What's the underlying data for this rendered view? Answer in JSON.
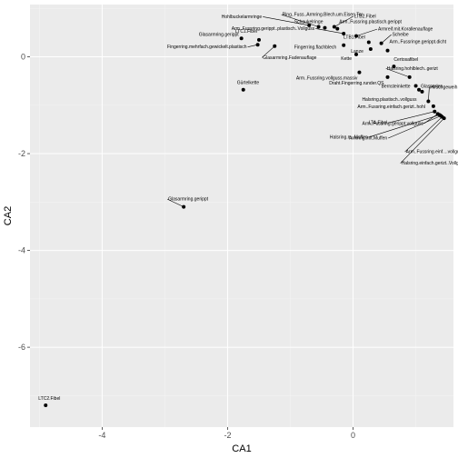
{
  "chart_data": {
    "type": "scatter",
    "xlabel": "CA1",
    "ylabel": "CA2",
    "xlim": [
      -5.15,
      1.6
    ],
    "ylim": [
      -7.65,
      1.08
    ],
    "x_ticks": [
      -4,
      -2,
      0
    ],
    "y_ticks": [
      -6,
      -4,
      -2,
      0
    ],
    "x_tick_labels": [
      "-4",
      "-2",
      "0"
    ],
    "y_tick_labels": [
      "-6",
      "-4",
      "-2",
      "0"
    ],
    "grid": true,
    "colors": {
      "panel": "#ebebeb",
      "grid_major": "#ffffff",
      "grid_minor": "#f4f4f4",
      "point": "#000000"
    },
    "points": [
      {
        "label": "Hohlbuckelarmringe",
        "x": -0.7,
        "y": 0.65
      },
      {
        "label": "Ring..Fuss..Armring.Blech.um.Eisen.Tor",
        "x": -0.55,
        "y": 0.62
      },
      {
        "label": "LTB2.Fibel",
        "x": -0.3,
        "y": 0.62
      },
      {
        "label": "Schaukelringe",
        "x": -0.45,
        "y": 0.6
      },
      {
        "label": "Arm..Fussring.plastisch.gerippt",
        "x": -0.25,
        "y": 0.58
      },
      {
        "label": "Armreif.mit.Korallenauflage",
        "x": 0.05,
        "y": 0.43
      },
      {
        "label": "LTC1.Fibel",
        "x": -1.5,
        "y": 0.35
      },
      {
        "label": "Glasarmring.gerippt",
        "x": -1.78,
        "y": 0.38
      },
      {
        "label": "Arm..Fussring.gerippt..plastisch..Vollguss",
        "x": -0.15,
        "y": 0.48
      },
      {
        "label": "LTB1.Fibel",
        "x": 0.25,
        "y": 0.3
      },
      {
        "label": "Scheibe",
        "x": 0.45,
        "y": 0.28
      },
      {
        "label": "Fingerring.mehrfach.gewickelt.plastisch",
        "x": -1.52,
        "y": 0.25
      },
      {
        "label": "Fingerring.flachblech",
        "x": -0.15,
        "y": 0.24
      },
      {
        "label": "Glasarmring.Fadenauflage",
        "x": -1.25,
        "y": 0.22
      },
      {
        "label": "Arm..Fussringe.gerippt.dicht",
        "x": 0.55,
        "y": 0.13
      },
      {
        "label": "Lanze",
        "x": 0.28,
        "y": 0.16
      },
      {
        "label": "Kette",
        "x": 0.05,
        "y": 0.05
      },
      {
        "label": "Certosafibel",
        "x": 0.65,
        "y": -0.2
      },
      {
        "label": "Arm..Fussring.vollguss.massiv",
        "x": 0.1,
        "y": -0.32
      },
      {
        "label": "Halsring.hohlblech..gerizt",
        "x": 0.9,
        "y": -0.42
      },
      {
        "label": "Draht.Fingerring.runder.QS",
        "x": 0.55,
        "y": -0.42
      },
      {
        "label": "Bernsteinkette",
        "x": 1.0,
        "y": -0.6
      },
      {
        "label": "Glasperlen",
        "x": 1.05,
        "y": -0.68
      },
      {
        "label": "Halsring.plastisch..vollguss",
        "x": 1.1,
        "y": -0.72
      },
      {
        "label": "Gürtelkette",
        "x": -1.75,
        "y": -0.68
      },
      {
        "label": "Hirschgeweih",
        "x": 1.2,
        "y": -0.92
      },
      {
        "label": "Arm..Fussring.einfach.gerizt..hohl",
        "x": 1.28,
        "y": -1.02
      },
      {
        "label": "LTA.Fibel",
        "x": 1.3,
        "y": -1.13
      },
      {
        "label": "Arm..Fussring.gerippt.vollguss",
        "x": 1.35,
        "y": -1.18
      },
      {
        "label": "Halsring.m..Muffen",
        "x": 1.38,
        "y": -1.2
      },
      {
        "label": "Armring.mit.Muffen",
        "x": 1.4,
        "y": -1.22
      },
      {
        "label": "Arm..Fussring.einf....vollguss.Steckv.",
        "x": 1.42,
        "y": -1.24
      },
      {
        "label": "Halsring.einfach.gerizt..Vollguss",
        "x": 1.45,
        "y": -1.27
      },
      {
        "label": "Glasarmring.gerippt",
        "x": -2.7,
        "y": -3.1
      },
      {
        "label": "LTC2.Fibel",
        "x": -4.9,
        "y": -7.2
      }
    ]
  }
}
